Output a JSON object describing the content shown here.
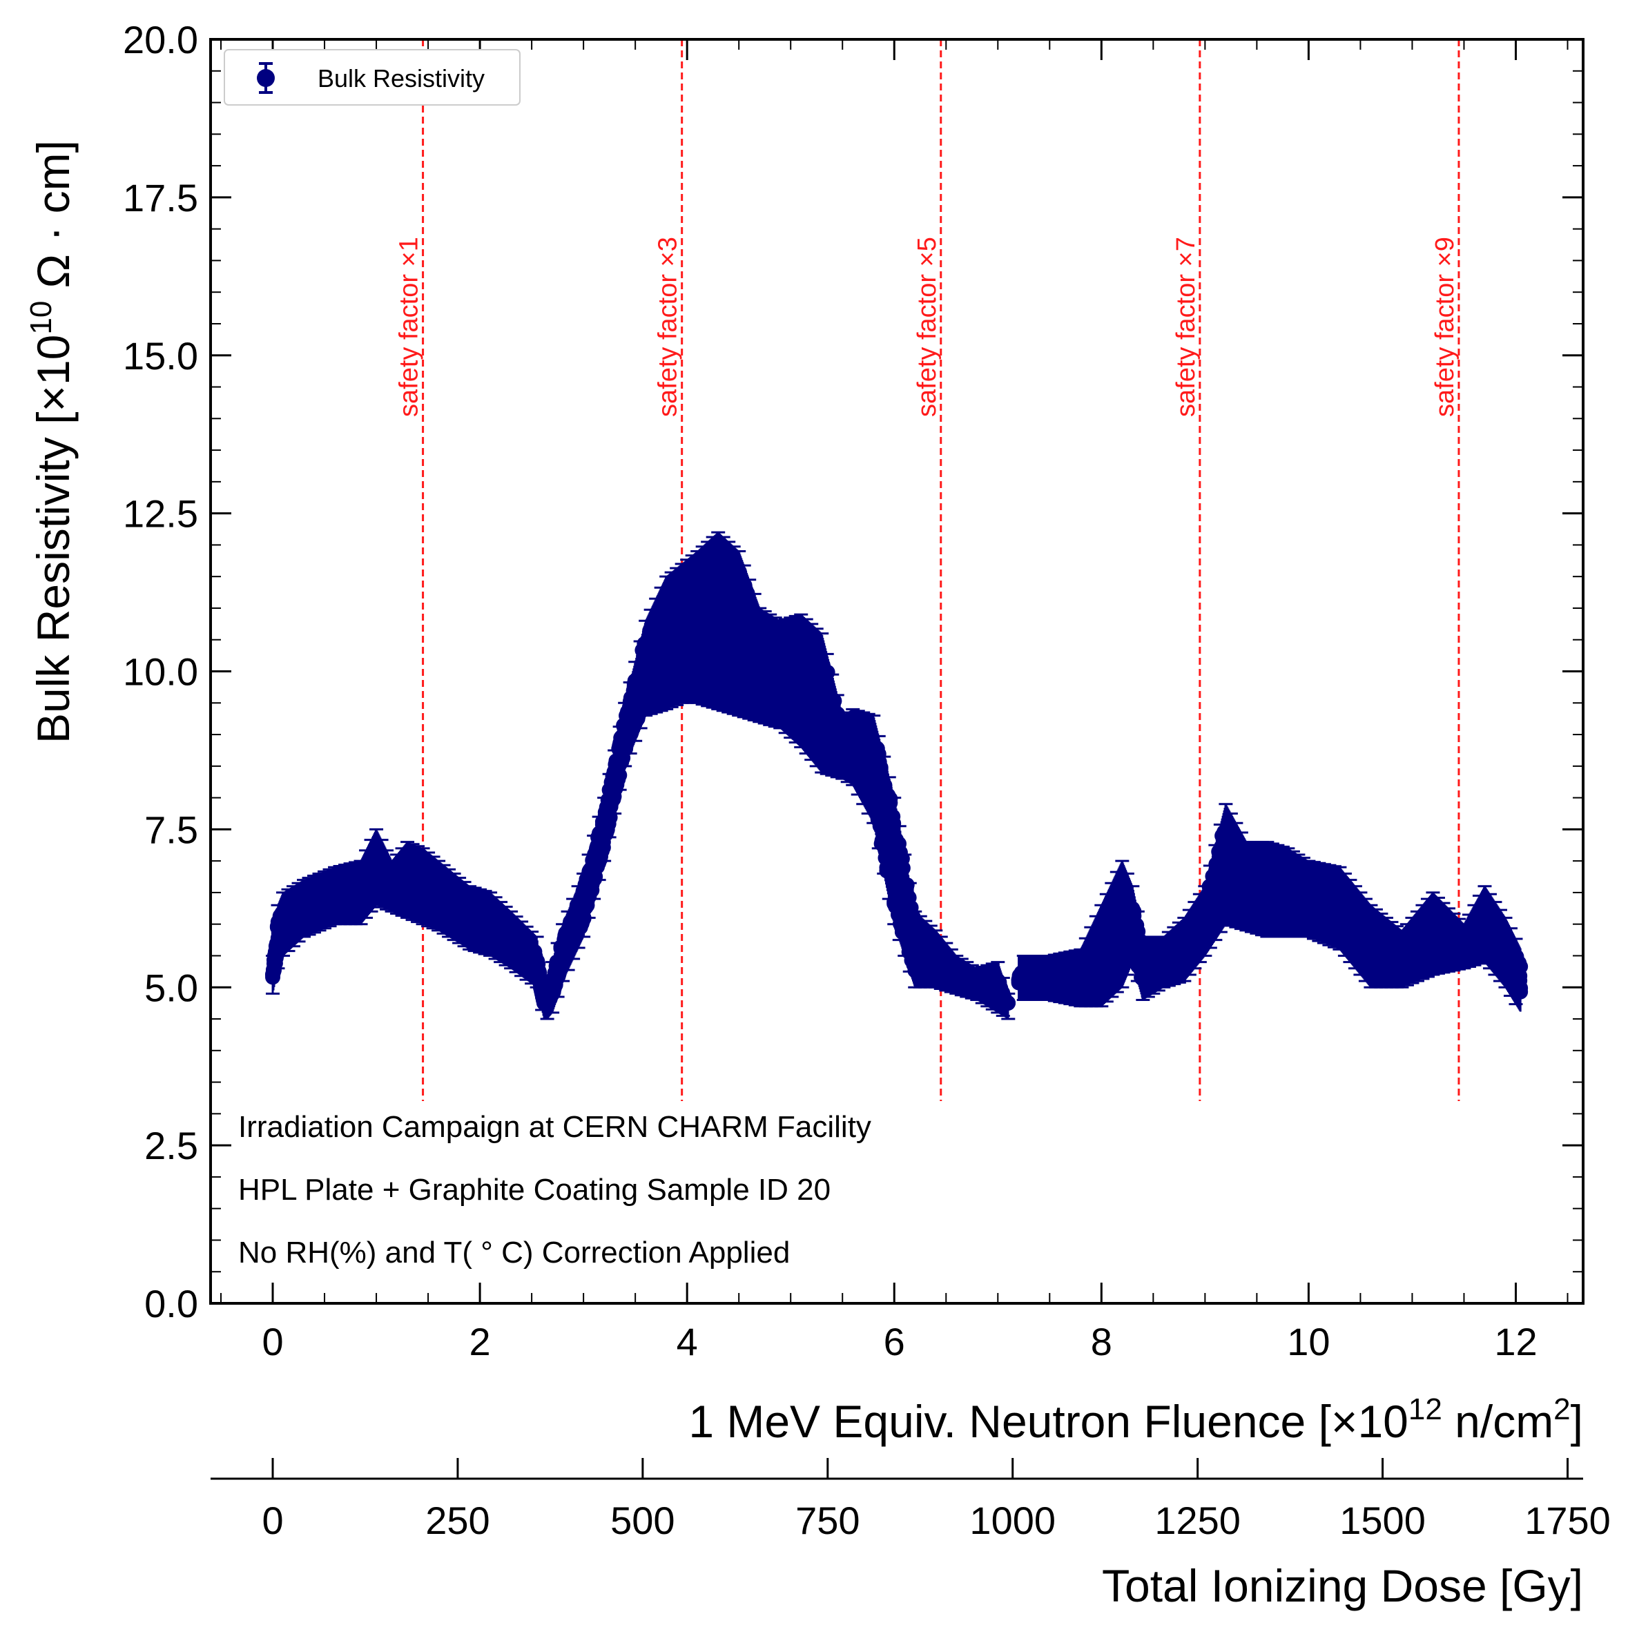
{
  "chart_data": {
    "type": "scatter",
    "title": "",
    "ylabel": "Bulk Resistivity [×10",
    "ylabel_exp": "10",
    "ylabel_unit": " Ω · cm]",
    "xlabel": "1 MeV Equiv. Neutron Fluence [×10",
    "xlabel_exp": "12",
    "xlabel_unit": " n/cm",
    "xlabel_unit_exp": "2",
    "xlabel_end": "]",
    "x2label": "Total Ionizing Dose [Gy]",
    "xlim": [
      -0.6,
      12.65
    ],
    "ylim": [
      0,
      20
    ],
    "x2lim": [
      -84,
      1771
    ],
    "x_ticks": [
      "0",
      "2",
      "4",
      "6",
      "8",
      "10",
      "12"
    ],
    "y_ticks": [
      "0.0",
      "2.5",
      "5.0",
      "7.5",
      "10.0",
      "12.5",
      "15.0",
      "17.5",
      "20.0"
    ],
    "x2_ticks": [
      "0",
      "250",
      "500",
      "750",
      "1000",
      "1250",
      "1500",
      "1750"
    ],
    "legend": {
      "label": "Bulk Resistivity",
      "placement": "top-left"
    },
    "series": [
      {
        "name": "Bulk Resistivity",
        "color": "#000080",
        "envelope_x": [
          0.0,
          0.05,
          0.1,
          0.3,
          0.6,
          0.85,
          1.0,
          1.15,
          1.3,
          1.45,
          1.6,
          1.9,
          2.1,
          2.3,
          2.55,
          2.62,
          2.65,
          2.7,
          2.8,
          3.0,
          3.2,
          3.4,
          3.6,
          3.8,
          3.95,
          4.1,
          4.3,
          4.5,
          4.7,
          4.9,
          5.1,
          5.3,
          5.5,
          5.6,
          5.8,
          6.0,
          6.2,
          6.4,
          6.6,
          6.8,
          7.0,
          7.1,
          7.2,
          7.5,
          7.8,
          8.0,
          8.2,
          8.3,
          8.4,
          8.6,
          8.8,
          9.0,
          9.2,
          9.4,
          9.6,
          9.8,
          10.0,
          10.3,
          10.6,
          10.9,
          11.2,
          11.5,
          11.7,
          11.9,
          12.05
        ],
        "envelope_upper": [
          5.5,
          6.3,
          6.5,
          6.7,
          6.9,
          7.0,
          7.5,
          7.0,
          7.3,
          7.2,
          7.0,
          6.6,
          6.5,
          6.2,
          5.8,
          4.9,
          4.9,
          5.4,
          6.0,
          6.8,
          8.0,
          9.5,
          10.8,
          11.5,
          11.7,
          11.9,
          12.2,
          11.9,
          11.0,
          10.8,
          10.9,
          10.6,
          9.3,
          9.4,
          9.3,
          8.0,
          6.2,
          5.9,
          5.5,
          5.3,
          5.4,
          4.9,
          5.5,
          5.5,
          5.6,
          6.3,
          7.0,
          6.6,
          5.8,
          5.8,
          6.1,
          6.6,
          7.9,
          7.3,
          7.3,
          7.2,
          7.0,
          6.9,
          6.3,
          5.9,
          6.5,
          6.0,
          6.6,
          6.1,
          5.6
        ],
        "envelope_lower": [
          4.9,
          5.3,
          5.5,
          5.8,
          6.0,
          6.0,
          6.3,
          6.2,
          6.1,
          6.0,
          5.9,
          5.6,
          5.5,
          5.3,
          5.0,
          4.5,
          4.5,
          4.6,
          5.1,
          5.8,
          7.0,
          8.5,
          9.3,
          9.4,
          9.5,
          9.5,
          9.4,
          9.3,
          9.2,
          9.1,
          8.8,
          8.4,
          8.3,
          8.2,
          7.6,
          6.0,
          5.0,
          5.0,
          4.9,
          4.8,
          4.6,
          4.5,
          4.8,
          4.8,
          4.7,
          4.7,
          5.0,
          5.4,
          4.8,
          5.0,
          5.1,
          5.5,
          6.0,
          5.9,
          5.8,
          5.8,
          5.8,
          5.6,
          5.0,
          5.0,
          5.2,
          5.3,
          5.4,
          5.0,
          4.6
        ]
      }
    ],
    "vlines": [
      {
        "x": 1.45,
        "label": "safety factor ×1"
      },
      {
        "x": 3.95,
        "label": "safety factor ×3"
      },
      {
        "x": 6.45,
        "label": "safety factor ×5"
      },
      {
        "x": 8.95,
        "label": "safety factor ×7"
      },
      {
        "x": 11.45,
        "label": "safety factor ×9"
      }
    ],
    "vline_color": "#ff1a1a",
    "annotations": [
      "Irradiation Campaign at CERN CHARM Facility",
      "HPL Plate + Graphite Coating Sample ID 20",
      "No RH(%) and T( ° C) Correction Applied"
    ]
  }
}
